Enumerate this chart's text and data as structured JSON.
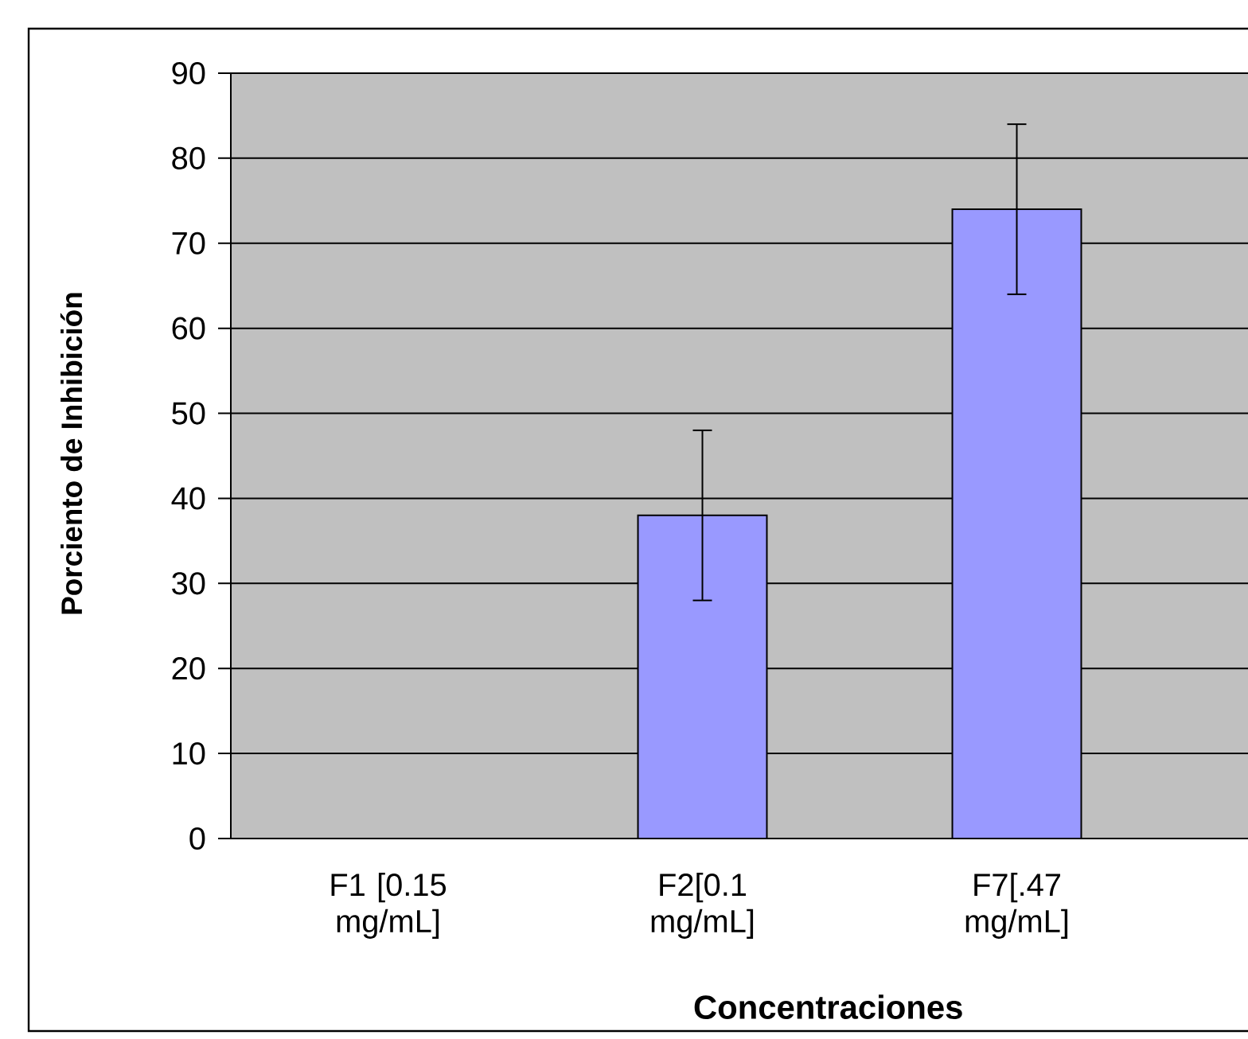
{
  "chart_data": {
    "type": "bar",
    "xlabel": "Concentraciones",
    "ylabel": "Porciento de Inhibición",
    "categories": [
      "F1 [0.15 mg/mL]",
      "F2[0.1 mg/mL]",
      "F7[.47 mg/mL]"
    ],
    "values": [
      null,
      38,
      74
    ],
    "errors": [
      null,
      10,
      10
    ],
    "color": "#9999ff",
    "ylim": [
      0,
      90
    ],
    "yticks": [
      0,
      10,
      20,
      30,
      40,
      50,
      60,
      70,
      80,
      90
    ],
    "grid": "y"
  }
}
